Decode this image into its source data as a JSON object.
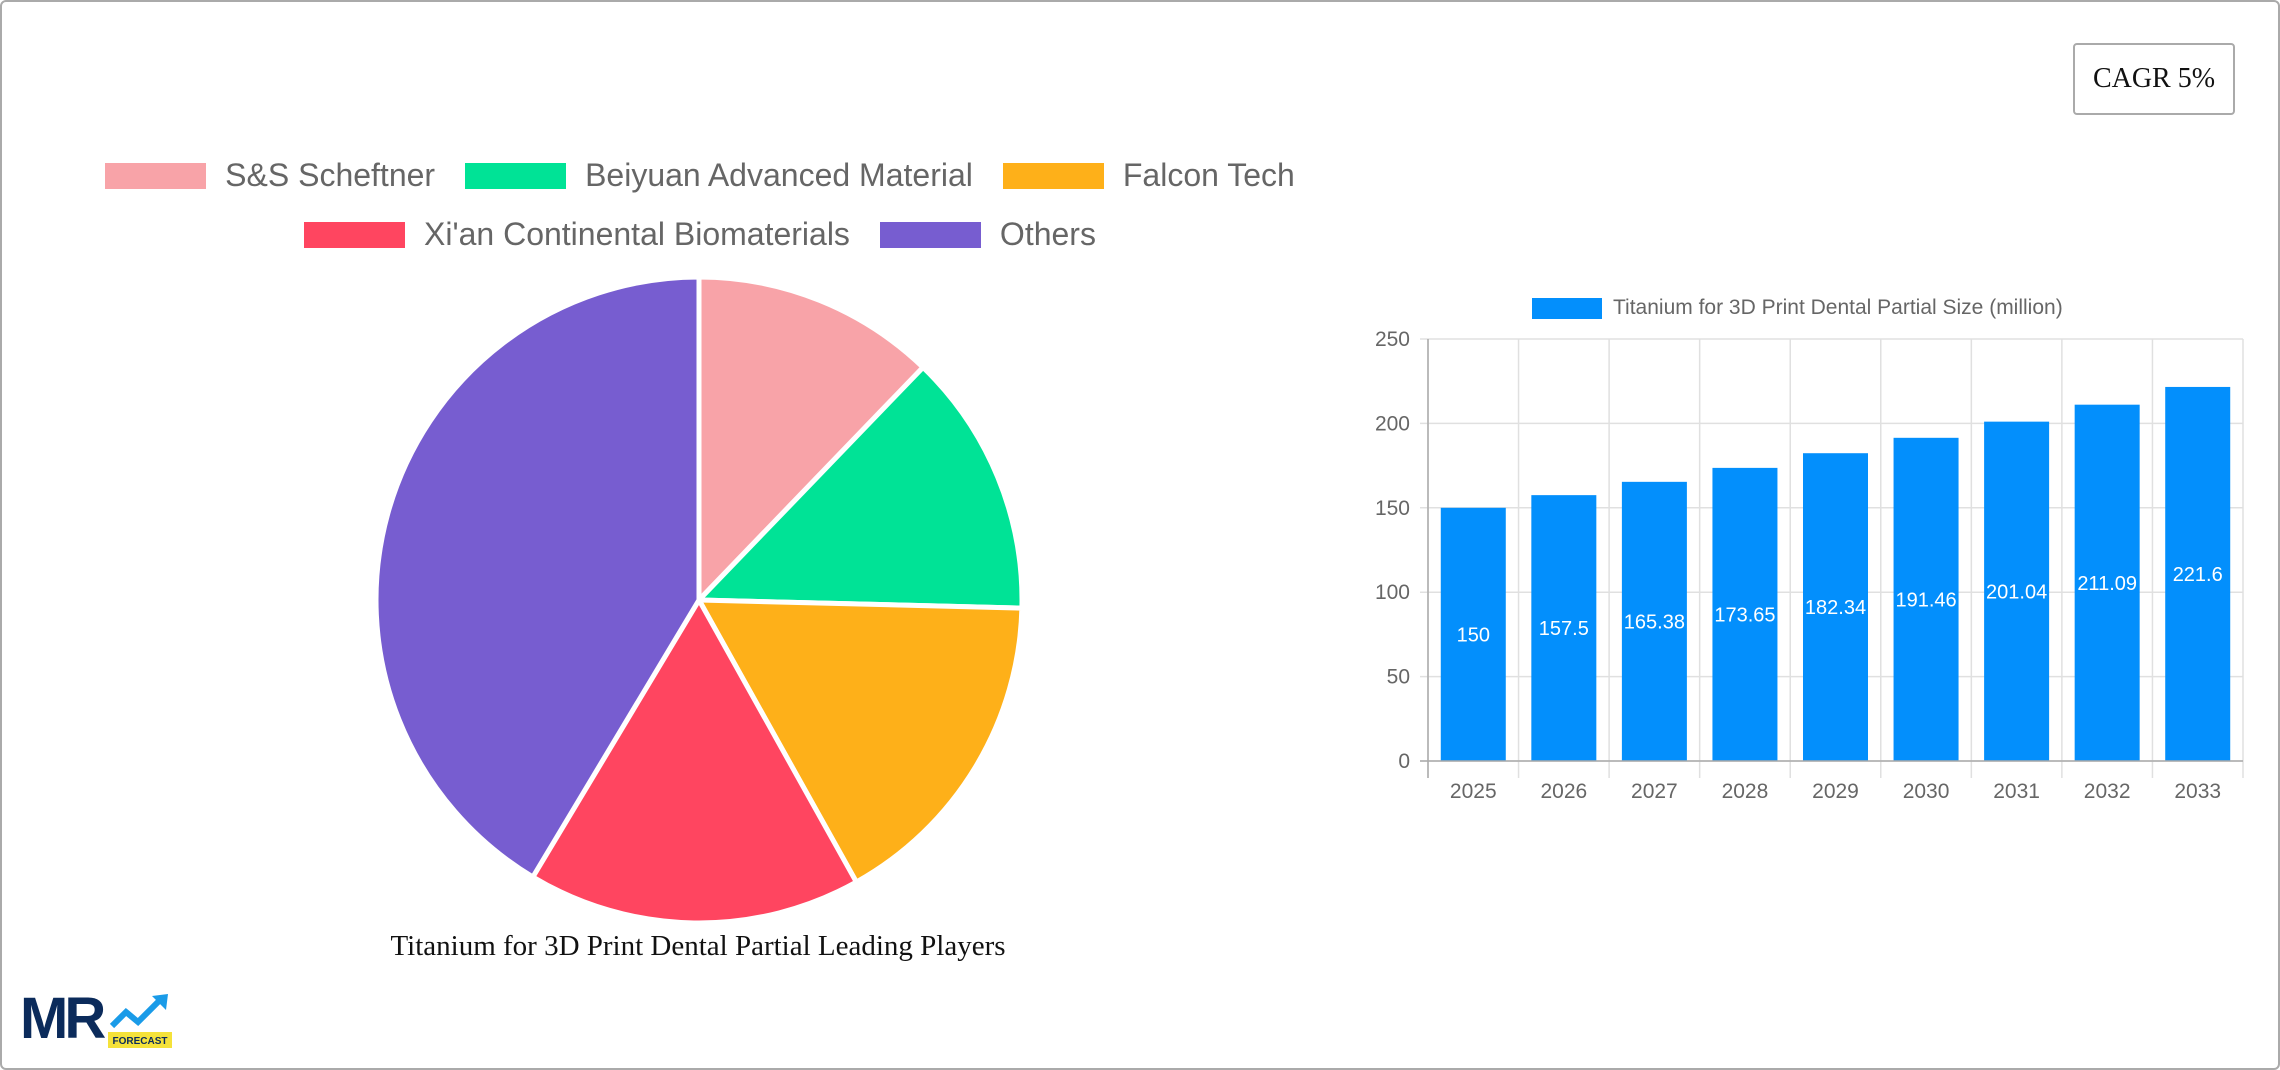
{
  "badge": {
    "cagr_label": "CAGR 5%"
  },
  "pie": {
    "title": "Titanium for 3D Print Dental Partial Leading Players",
    "legend": [
      {
        "label": "S&S Scheftner",
        "color": "#f8a3a8"
      },
      {
        "label": "Beiyuan Advanced Material",
        "color": "#00e396"
      },
      {
        "label": "Falcon Tech",
        "color": "#feb019"
      },
      {
        "label": "Xi'an Continental Biomaterials",
        "color": "#ff4560"
      },
      {
        "label": "Others",
        "color": "#775dd0"
      }
    ]
  },
  "bar": {
    "legend_label": "Titanium for 3D Print Dental Partial Size (million)",
    "color": "#038ffc"
  },
  "logo": {
    "text": "MR",
    "sub": "FORECAST"
  },
  "chart_data": [
    {
      "type": "pie",
      "title": "Titanium for 3D Print Dental Partial Leading Players",
      "categories": [
        "S&S Scheftner",
        "Beiyuan Advanced Material",
        "Falcon Tech",
        "Xi'an Continental Biomaterials",
        "Others"
      ],
      "values": [
        12.2,
        13.2,
        16.5,
        16.7,
        41.4
      ],
      "colors": [
        "#f8a3a8",
        "#00e396",
        "#feb019",
        "#ff4560",
        "#775dd0"
      ],
      "legend_position": "top"
    },
    {
      "type": "bar",
      "title": "",
      "categories": [
        "2025",
        "2026",
        "2027",
        "2028",
        "2029",
        "2030",
        "2031",
        "2032",
        "2033"
      ],
      "series": [
        {
          "name": "Titanium for 3D Print Dental Partial Size (million)",
          "values": [
            150,
            157.5,
            165.38,
            173.65,
            182.34,
            191.46,
            201.04,
            211.09,
            221.6
          ]
        }
      ],
      "xlabel": "",
      "ylabel": "",
      "ylim": [
        0,
        250
      ],
      "yticks": [
        0,
        50,
        100,
        150,
        200,
        250
      ],
      "grid": true,
      "data_labels": true,
      "legend_position": "top"
    }
  ]
}
